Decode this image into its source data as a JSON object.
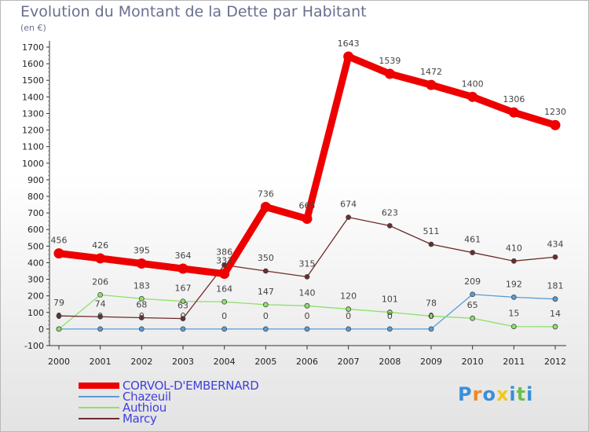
{
  "header": {
    "title": "Evolution du Montant de la Dette par Habitant",
    "unit": "(en €)"
  },
  "branding": {
    "logo_text": "Proxiti",
    "logo_colors": [
      "#3a8fd8",
      "#f08a1c",
      "#3a8fd8",
      "#f0c81c",
      "#3a8fd8",
      "#6cc04a",
      "#3a8fd8"
    ]
  },
  "chart_data": {
    "type": "line",
    "x": [
      2000,
      2001,
      2002,
      2003,
      2004,
      2005,
      2006,
      2007,
      2008,
      2009,
      2010,
      2011,
      2012
    ],
    "ylim": [
      -100,
      1700
    ],
    "yticks": [
      -100,
      0,
      100,
      200,
      300,
      400,
      500,
      600,
      700,
      800,
      900,
      1000,
      1100,
      1200,
      1300,
      1400,
      1500,
      1600,
      1700
    ],
    "grid": false,
    "legend_position": "bottom-left",
    "series": [
      {
        "name": "CORVOL-D'EMBERNARD",
        "color": "#ee0000",
        "values": [
          456,
          426,
          395,
          364,
          333,
          736,
          665,
          1643,
          1539,
          1472,
          1400,
          1306,
          1230
        ],
        "labels": [
          "456",
          "426",
          "395",
          "364",
          "333",
          "736",
          "665",
          "1643",
          "1539",
          "1472",
          "1400",
          "1306",
          "1230"
        ]
      },
      {
        "name": "Chazeuil",
        "color": "#5b9bd5",
        "values": [
          0,
          0,
          0,
          0,
          0,
          0,
          0,
          0,
          0,
          0,
          209,
          192,
          181
        ],
        "labels": [
          "0",
          "0",
          "0",
          "0",
          "0",
          "0",
          "0",
          "0",
          "0",
          "0",
          "209",
          "192",
          "181"
        ]
      },
      {
        "name": "Authiou",
        "color": "#8ee06a",
        "values": [
          0,
          206,
          183,
          167,
          164,
          147,
          140,
          120,
          101,
          78,
          65,
          15,
          14
        ],
        "labels": [
          "0",
          "206",
          "183",
          "167",
          "164",
          "147",
          "140",
          "120",
          "101",
          "78",
          "65",
          "15",
          "14"
        ]
      },
      {
        "name": "Marcy",
        "color": "#6e2b2b",
        "values": [
          79,
          74,
          68,
          63,
          386,
          350,
          315,
          674,
          623,
          511,
          461,
          410,
          434
        ],
        "labels": [
          "79",
          "74",
          "68",
          "63",
          "386",
          "350",
          "315",
          "674",
          "623",
          "511",
          "461",
          "410",
          "434"
        ]
      }
    ]
  }
}
